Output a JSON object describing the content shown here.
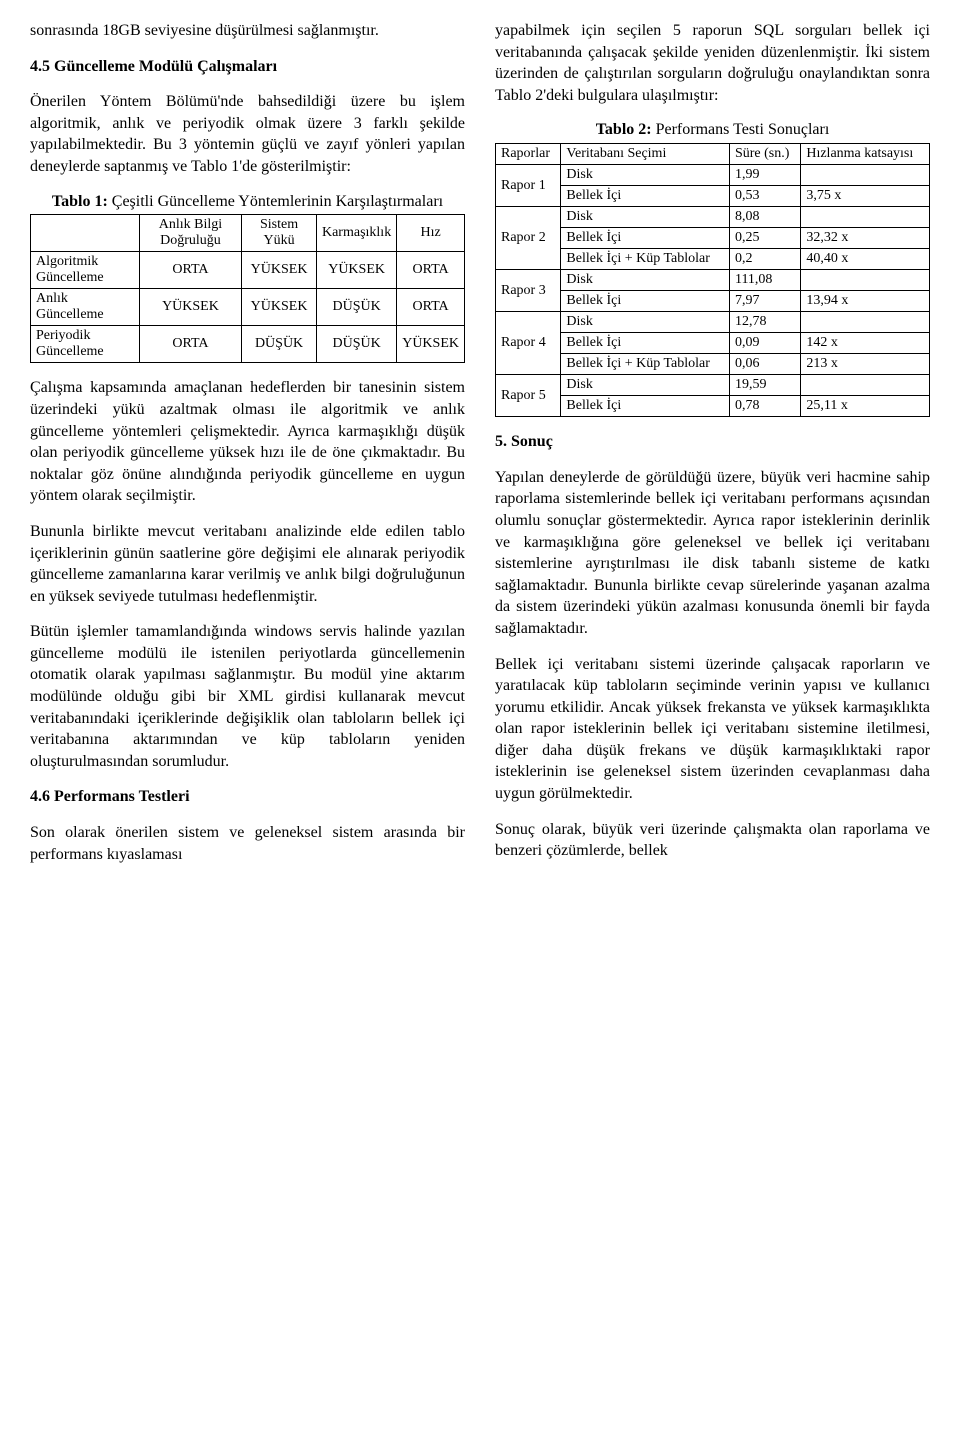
{
  "left": {
    "p1": "sonrasında 18GB seviyesine düşürülmesi sağlanmıştır.",
    "h1": "4.5 Güncelleme Modülü Çalışmaları",
    "p2": "Önerilen Yöntem Bölümü'nde bahsedildiği üzere bu işlem algoritmik, anlık ve periyodik olmak üzere 3 farklı şekilde yapılabilmektedir. Bu 3 yöntemin güçlü ve zayıf yönleri yapılan deneylerde saptanmış ve Tablo 1'de gösterilmiştir:",
    "table1": {
      "caption_bold": "Tablo 1:",
      "caption_rest": " Çeşitli Güncelleme Yöntemlerinin Karşılaştırmaları",
      "headers": [
        "",
        "Anlık Bilgi Doğruluğu",
        "Sistem Yükü",
        "Karmaşıklık",
        "Hız"
      ],
      "rows": [
        [
          "Algoritmik Güncelleme",
          "ORTA",
          "YÜKSEK",
          "YÜKSEK",
          "ORTA"
        ],
        [
          "Anlık Güncelleme",
          "YÜKSEK",
          "YÜKSEK",
          "DÜŞÜK",
          "ORTA"
        ],
        [
          "Periyodik Güncelleme",
          "ORTA",
          "DÜŞÜK",
          "DÜŞÜK",
          "YÜKSEK"
        ]
      ]
    },
    "p3": "Çalışma kapsamında amaçlanan hedeflerden bir tanesinin sistem üzerindeki yükü azaltmak olması ile algoritmik ve anlık güncelleme yöntemleri çelişmektedir. Ayrıca karmaşıklığı düşük olan periyodik güncelleme yüksek hızı ile de öne çıkmaktadır. Bu noktalar göz önüne alındığında periyodik güncelleme en uygun yöntem olarak seçilmiştir.",
    "p4": "Bununla birlikte mevcut veritabanı analizinde elde edilen tablo içeriklerinin günün saatlerine göre değişimi ele alınarak periyodik güncelleme zamanlarına karar verilmiş ve anlık bilgi doğruluğunun en yüksek seviyede tutulması hedeflenmiştir.",
    "p5": "Bütün işlemler tamamlandığında windows servis halinde yazılan güncelleme modülü ile istenilen periyotlarda güncellemenin otomatik olarak yapılması sağlanmıştır. Bu modül yine aktarım modülünde olduğu gibi bir XML girdisi kullanarak mevcut veritabanındaki içeriklerinde değişiklik olan tabloların bellek içi veritabanına aktarımından ve küp tabloların yeniden oluşturulmasından sorumludur.",
    "h2": "4.6 Performans Testleri",
    "p6": "Son olarak önerilen sistem ve geleneksel sistem arasında bir performans kıyaslaması"
  },
  "right": {
    "p1": "yapabilmek için seçilen 5 raporun SQL sorguları bellek içi veritabanında çalışacak şekilde yeniden düzenlenmiştir. İki sistem üzerinden de çalıştırılan sorguların doğruluğu onaylandıktan sonra Tablo 2'deki bulgulara ulaşılmıştır:",
    "table2": {
      "caption_bold": "Tablo 2:",
      "caption_rest": " Performans Testi Sonuçları",
      "head": {
        "c1": "Raporlar",
        "c2": "Veritabanı Seçimi",
        "c3": "Süre (sn.)",
        "c4": "Hızlanma katsayısı"
      },
      "groups": [
        {
          "name": "Rapor 1",
          "rows": [
            {
              "db": "Disk",
              "time": "1,99",
              "speedup": ""
            },
            {
              "db": "Bellek İçi",
              "time": "0,53",
              "speedup": "3,75 x"
            }
          ]
        },
        {
          "name": "Rapor 2",
          "rows": [
            {
              "db": "Disk",
              "time": "8,08",
              "speedup": ""
            },
            {
              "db": "Bellek İçi",
              "time": "0,25",
              "speedup": "32,32 x"
            },
            {
              "db": "Bellek İçi + Küp Tablolar",
              "time": "0,2",
              "speedup": "40,40 x"
            }
          ]
        },
        {
          "name": "Rapor 3",
          "rows": [
            {
              "db": "Disk",
              "time": "111,08",
              "speedup": ""
            },
            {
              "db": "Bellek İçi",
              "time": "7,97",
              "speedup": "13,94 x"
            }
          ]
        },
        {
          "name": "Rapor 4",
          "rows": [
            {
              "db": "Disk",
              "time": "12,78",
              "speedup": ""
            },
            {
              "db": "Bellek İçi",
              "time": "0,09",
              "speedup": "142 x"
            },
            {
              "db": "Bellek İçi + Küp Tablolar",
              "time": "0,06",
              "speedup": "213 x"
            }
          ]
        },
        {
          "name": "Rapor 5",
          "rows": [
            {
              "db": "Disk",
              "time": "19,59",
              "speedup": ""
            },
            {
              "db": "Bellek İçi",
              "time": "0,78",
              "speedup": "25,11 x"
            }
          ]
        }
      ]
    },
    "h1": "5. Sonuç",
    "p2": "Yapılan deneylerde de görüldüğü üzere, büyük veri hacmine sahip raporlama sistemlerinde bellek içi veritabanı performans açısından olumlu sonuçlar göstermektedir. Ayrıca rapor isteklerinin derinlik ve karmaşıklığına göre geleneksel ve bellek içi veritabanı sistemlerine ayrıştırılması ile disk tabanlı sisteme de katkı sağlamaktadır. Bununla birlikte cevap sürelerinde yaşanan azalma da sistem üzerindeki yükün azalması konusunda önemli bir fayda sağlamaktadır.",
    "p3": "Bellek içi veritabanı sistemi üzerinde çalışacak raporların ve yaratılacak küp tabloların seçiminde verinin yapısı ve kullanıcı yorumu etkilidir. Ancak yüksek frekansta ve yüksek karmaşıklıkta olan rapor isteklerinin bellek içi veritabanı sistemine iletilmesi, diğer daha düşük frekans ve düşük karmaşıklıktaki rapor isteklerinin ise geleneksel sistem üzerinden cevaplanması daha uygun görülmektedir.",
    "p4": "Sonuç olarak, büyük veri üzerinde çalışmakta olan raporlama ve benzeri çözümlerde, bellek"
  }
}
